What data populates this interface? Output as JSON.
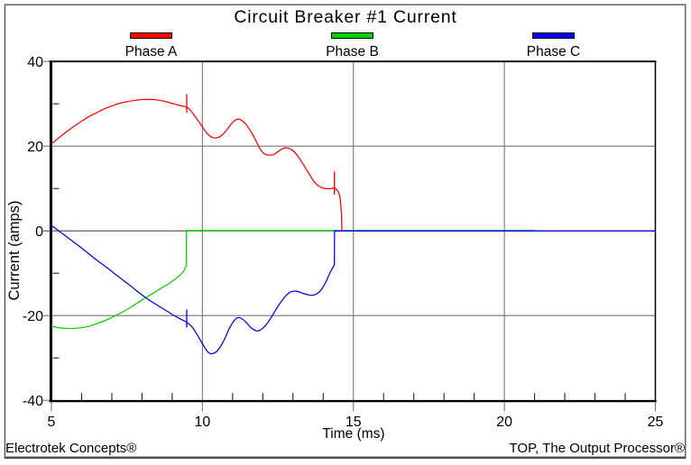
{
  "window": {
    "background": "#ffffff",
    "frame_color": "#4d4d4d"
  },
  "footer": {
    "left": "Electrotek Concepts®",
    "right": "TOP, The Output Processor®"
  },
  "chart_data": {
    "type": "line",
    "title": "Circuit Breaker #1 Current",
    "xlabel": "Time (ms)",
    "ylabel": "Current (amps)",
    "xlim": [
      5,
      25
    ],
    "ylim": [
      -40,
      40
    ],
    "x_ticks": [
      5,
      10,
      15,
      20,
      25
    ],
    "y_ticks": [
      40,
      20,
      0,
      -20,
      -40
    ],
    "x_minor_interval": 1,
    "y_minor_interval": 10,
    "grid": true,
    "grid_x": [
      10,
      15,
      20
    ],
    "grid_y": [
      20,
      -20
    ],
    "zero_line": 0,
    "grid_color": "#757575",
    "zero_line_color": "#4d4d4d",
    "axis_color": "#000000",
    "legend_position": "top",
    "legend": [
      {
        "label": "Phase A",
        "color": "#ff0000"
      },
      {
        "label": "Phase B",
        "color": "#00d300"
      },
      {
        "label": "Phase C",
        "color": "#0000f0"
      }
    ],
    "series": [
      {
        "name": "Phase A",
        "color": "#ff0000",
        "smooth_segments": [
          [
            [
              5.0,
              20.5
            ],
            [
              5.25,
              22.0
            ],
            [
              5.5,
              23.4
            ],
            [
              5.75,
              24.7
            ],
            [
              6.0,
              25.9
            ],
            [
              6.25,
              27.0
            ],
            [
              6.5,
              27.9
            ],
            [
              6.75,
              28.8
            ],
            [
              7.0,
              29.5
            ],
            [
              7.25,
              30.1
            ],
            [
              7.5,
              30.5
            ],
            [
              7.75,
              30.8
            ],
            [
              8.0,
              31.0
            ],
            [
              8.2,
              31.05
            ],
            [
              8.4,
              31.0
            ],
            [
              8.6,
              30.8
            ],
            [
              8.8,
              30.5
            ],
            [
              9.0,
              30.1
            ],
            [
              9.2,
              29.7
            ],
            [
              9.35,
              29.45
            ],
            [
              9.48,
              29.2
            ],
            [
              9.6,
              28.5
            ],
            [
              9.75,
              27.1
            ],
            [
              9.9,
              25.6
            ],
            [
              10.05,
              24.0
            ],
            [
              10.2,
              22.7
            ],
            [
              10.35,
              22.0
            ],
            [
              10.5,
              22.0
            ],
            [
              10.65,
              22.6
            ],
            [
              10.8,
              23.8
            ],
            [
              10.95,
              25.2
            ],
            [
              11.1,
              26.2
            ],
            [
              11.2,
              26.4
            ],
            [
              11.3,
              26.1
            ],
            [
              11.45,
              25.1
            ],
            [
              11.6,
              23.5
            ],
            [
              11.75,
              21.6
            ],
            [
              11.9,
              19.5
            ],
            [
              12.05,
              18.2
            ],
            [
              12.2,
              17.9
            ],
            [
              12.35,
              18.0
            ],
            [
              12.5,
              18.7
            ],
            [
              12.65,
              19.4
            ],
            [
              12.8,
              19.6
            ],
            [
              12.95,
              19.2
            ],
            [
              13.1,
              18.2
            ],
            [
              13.25,
              16.7
            ],
            [
              13.4,
              15.0
            ],
            [
              13.55,
              13.3
            ],
            [
              13.7,
              11.6
            ],
            [
              13.85,
              10.6
            ],
            [
              14.0,
              10.1
            ],
            [
              14.15,
              9.95
            ],
            [
              14.25,
              9.95
            ],
            [
              14.37,
              10.15
            ],
            [
              14.45,
              9.7
            ],
            [
              14.52,
              8.9
            ],
            [
              14.57,
              7.3
            ]
          ]
        ],
        "line_segments": [
          [
            [
              14.57,
              7.3
            ],
            [
              14.605,
              4.0
            ],
            [
              14.62,
              0.0
            ]
          ],
          [
            [
              9.48,
              27.9
            ],
            [
              9.48,
              32.3
            ]
          ],
          [
            [
              14.37,
              8.6
            ],
            [
              14.37,
              14.0
            ]
          ]
        ]
      },
      {
        "name": "Phase B",
        "color": "#00d300",
        "smooth_segments": [
          [
            [
              5.0,
              -22.5
            ],
            [
              5.3,
              -22.9
            ],
            [
              5.6,
              -23.05
            ],
            [
              5.9,
              -22.95
            ],
            [
              6.2,
              -22.6
            ],
            [
              6.5,
              -21.9
            ],
            [
              6.8,
              -21.1
            ],
            [
              7.1,
              -20.1
            ],
            [
              7.4,
              -19.0
            ],
            [
              7.7,
              -17.7
            ],
            [
              8.0,
              -16.3
            ],
            [
              8.3,
              -15.0
            ],
            [
              8.6,
              -13.7
            ],
            [
              8.9,
              -12.4
            ],
            [
              9.1,
              -11.4
            ],
            [
              9.25,
              -10.5
            ],
            [
              9.38,
              -9.5
            ]
          ]
        ],
        "line_segments": [
          [
            [
              9.38,
              -9.5
            ],
            [
              9.47,
              -8.1
            ],
            [
              9.47,
              0.0
            ],
            [
              21.0,
              0.0
            ]
          ]
        ]
      },
      {
        "name": "Phase C",
        "color": "#0000f0",
        "smooth_segments": [
          [
            [
              5.0,
              1.3
            ],
            [
              5.3,
              -0.3
            ],
            [
              5.6,
              -1.9
            ],
            [
              5.9,
              -3.5
            ],
            [
              6.2,
              -5.2
            ],
            [
              6.5,
              -6.9
            ],
            [
              6.88,
              -8.9
            ],
            [
              7.2,
              -10.7
            ],
            [
              7.5,
              -12.3
            ],
            [
              7.8,
              -14.0
            ],
            [
              8.13,
              -15.8
            ],
            [
              8.45,
              -17.3
            ],
            [
              8.75,
              -18.6
            ],
            [
              9.04,
              -19.9
            ],
            [
              9.3,
              -20.9
            ],
            [
              9.48,
              -21.6
            ],
            [
              9.65,
              -22.6
            ],
            [
              9.8,
              -24.2
            ],
            [
              9.95,
              -26.0
            ],
            [
              10.1,
              -27.8
            ],
            [
              10.2,
              -28.7
            ],
            [
              10.3,
              -29.0
            ],
            [
              10.45,
              -28.6
            ],
            [
              10.6,
              -27.3
            ],
            [
              10.75,
              -25.3
            ],
            [
              10.9,
              -22.9
            ],
            [
              11.05,
              -21.2
            ],
            [
              11.16,
              -20.5
            ],
            [
              11.3,
              -20.7
            ],
            [
              11.45,
              -21.6
            ],
            [
              11.6,
              -22.8
            ],
            [
              11.75,
              -23.5
            ],
            [
              11.85,
              -23.6
            ],
            [
              12.0,
              -23.0
            ],
            [
              12.15,
              -21.8
            ],
            [
              12.3,
              -20.2
            ],
            [
              12.45,
              -18.4
            ],
            [
              12.6,
              -16.8
            ],
            [
              12.75,
              -15.4
            ],
            [
              12.9,
              -14.5
            ],
            [
              13.05,
              -14.2
            ],
            [
              13.2,
              -14.4
            ],
            [
              13.35,
              -14.8
            ],
            [
              13.5,
              -15.1
            ],
            [
              13.6,
              -15.2
            ],
            [
              13.75,
              -15.0
            ],
            [
              13.9,
              -14.2
            ],
            [
              14.0,
              -13.2
            ],
            [
              14.1,
              -11.9
            ],
            [
              14.2,
              -10.3
            ],
            [
              14.3,
              -8.9
            ],
            [
              14.37,
              -8.0
            ]
          ]
        ],
        "line_segments": [
          [
            [
              14.37,
              -8.0
            ],
            [
              14.375,
              0.0
            ],
            [
              25.0,
              0.0
            ]
          ],
          [
            [
              9.48,
              -22.8
            ],
            [
              9.48,
              -18.6
            ]
          ]
        ]
      }
    ]
  }
}
